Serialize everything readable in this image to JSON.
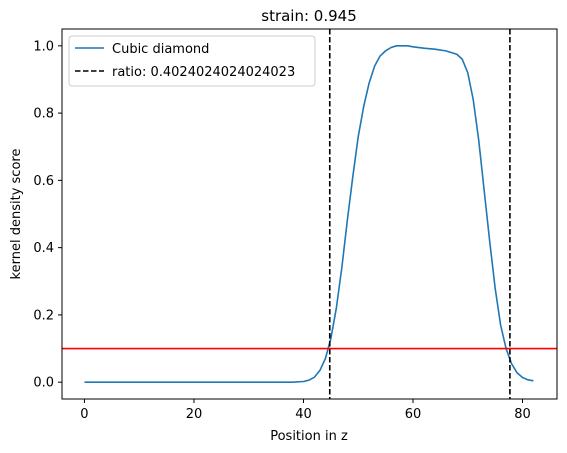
{
  "chart_data": {
    "type": "line",
    "title": "strain: 0.945",
    "xlabel": "Position in z",
    "ylabel": "kernel density score",
    "xlim": [
      -4.1,
      86.3
    ],
    "ylim": [
      -0.05,
      1.05
    ],
    "x_ticks": [
      "0",
      "20",
      "40",
      "60",
      "80"
    ],
    "x_tick_values": [
      0,
      20,
      40,
      60,
      80
    ],
    "y_ticks": [
      "0.0",
      "0.2",
      "0.4",
      "0.6",
      "0.8",
      "1.0"
    ],
    "y_tick_values": [
      0.0,
      0.2,
      0.4,
      0.6,
      0.8,
      1.0
    ],
    "grid": false,
    "legend_placement": "upper-left",
    "series": [
      {
        "name": "Cubic diamond",
        "color": "#1f77b4",
        "style": "solid",
        "x": [
          0,
          10,
          20,
          30,
          38,
          40,
          41,
          42,
          43,
          44,
          45,
          46,
          47,
          48,
          49,
          50,
          51,
          52,
          53,
          54,
          55,
          56,
          57,
          58,
          59,
          60,
          62,
          64,
          66,
          68,
          69,
          70,
          71,
          72,
          73,
          74,
          75,
          76,
          77,
          78,
          79,
          80,
          81,
          82
        ],
        "y": [
          0.0,
          0.0,
          0.0,
          0.0,
          0.0,
          0.002,
          0.006,
          0.015,
          0.035,
          0.07,
          0.13,
          0.22,
          0.34,
          0.48,
          0.61,
          0.73,
          0.82,
          0.89,
          0.94,
          0.97,
          0.985,
          0.995,
          1.0,
          1.0,
          1.0,
          0.997,
          0.993,
          0.99,
          0.985,
          0.975,
          0.96,
          0.92,
          0.84,
          0.72,
          0.57,
          0.42,
          0.28,
          0.17,
          0.1,
          0.055,
          0.028,
          0.014,
          0.007,
          0.004
        ]
      },
      {
        "name": "ratio: 0.4024024024024023",
        "color": "#000000",
        "style": "dashed",
        "vlines": [
          44.8,
          77.7
        ]
      },
      {
        "color": "#ff0000",
        "style": "solid",
        "hline": 0.1
      }
    ]
  }
}
